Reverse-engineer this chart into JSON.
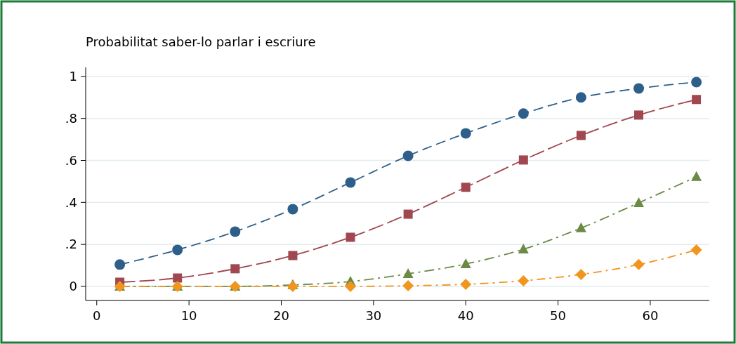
{
  "chart_data": {
    "type": "line",
    "ylabel": "Probabilitat saber-lo parlar i escriure",
    "x": [
      2.5,
      8.75,
      15,
      21.25,
      27.5,
      33.75,
      40,
      46.25,
      52.5,
      58.75,
      65
    ],
    "series": [
      {
        "color": "#2e5f8a",
        "marker": "circle",
        "line_style": "dashed",
        "values": [
          0.104,
          0.174,
          0.261,
          0.368,
          0.495,
          0.622,
          0.729,
          0.823,
          0.9,
          0.943,
          0.973
        ]
      },
      {
        "color": "#a0474f",
        "marker": "square",
        "line_style": "dashed",
        "values": [
          0.02,
          0.04,
          0.084,
          0.147,
          0.234,
          0.344,
          0.472,
          0.602,
          0.719,
          0.816,
          0.89
        ]
      },
      {
        "color": "#6a8a45",
        "marker": "triangle",
        "line_style": "dashed",
        "values": [
          0,
          0,
          0,
          0.007,
          0.023,
          0.06,
          0.107,
          0.177,
          0.278,
          0.398,
          0.522
        ]
      },
      {
        "color": "#f0961e",
        "marker": "diamond",
        "line_style": "dashed",
        "values": [
          0,
          0,
          0,
          0,
          0,
          0.003,
          0.01,
          0.027,
          0.057,
          0.104,
          0.174
        ]
      }
    ],
    "xlim": [
      -1.2,
      66.4
    ],
    "ylim": [
      -0.067,
      1.043
    ],
    "xticks": [
      0,
      10,
      20,
      30,
      40,
      50,
      60
    ],
    "yticks": [
      0,
      {
        "value": 0.2,
        "label": ".2"
      },
      {
        "value": 0.4,
        "label": ".4"
      },
      {
        "value": 0.6,
        "label": ".6"
      },
      {
        "value": 0.8,
        "label": ".8"
      },
      1
    ],
    "grid": "y"
  }
}
